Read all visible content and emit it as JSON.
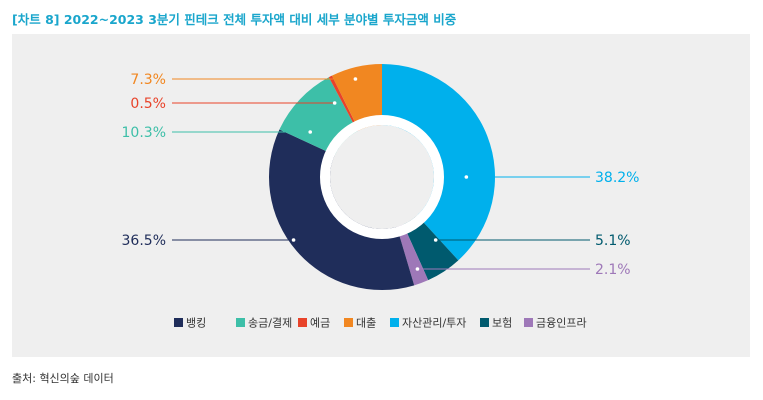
{
  "title": "[차트 8] 2022~2023 3분기 핀테크 전체 투자액 대비 세부 분야별 투자금액 비중",
  "source": "출처: 혁신의숲 데이터",
  "chart_data": {
    "type": "pie",
    "variant": "donut",
    "title": "[차트 8] 2022~2023 3분기 핀테크 전체 투자액 대비 세부 분야별 투자금액 비중",
    "unit": "%",
    "start": "12 o'clock, clockwise",
    "legend_position": "bottom",
    "slices": [
      {
        "name": "자산관리/투자",
        "value": 38.2,
        "label": "38.2%",
        "color": "#00b0ec",
        "label_side": "right"
      },
      {
        "name": "보험",
        "value": 5.1,
        "label": "5.1%",
        "color": "#005a6e",
        "label_side": "right"
      },
      {
        "name": "금융인프라",
        "value": 2.1,
        "label": "2.1%",
        "color": "#9e78b8",
        "label_side": "right"
      },
      {
        "name": "뱅킹",
        "value": 36.5,
        "label": "36.5%",
        "color": "#1f2d5a",
        "label_side": "left"
      },
      {
        "name": "송금/결제",
        "value": 10.3,
        "label": "10.3%",
        "color": "#3dbfa8",
        "label_side": "left"
      },
      {
        "name": "예금",
        "value": 0.5,
        "label": "0.5%",
        "color": "#e8432a",
        "label_side": "left"
      },
      {
        "name": "대출",
        "value": 7.3,
        "label": "7.3%",
        "color": "#f18721",
        "label_side": "left"
      }
    ],
    "legend": [
      "뱅킹",
      "송금/결제",
      "예금",
      "대출",
      "자산관리/투자",
      "보험",
      "금융인프라"
    ]
  }
}
